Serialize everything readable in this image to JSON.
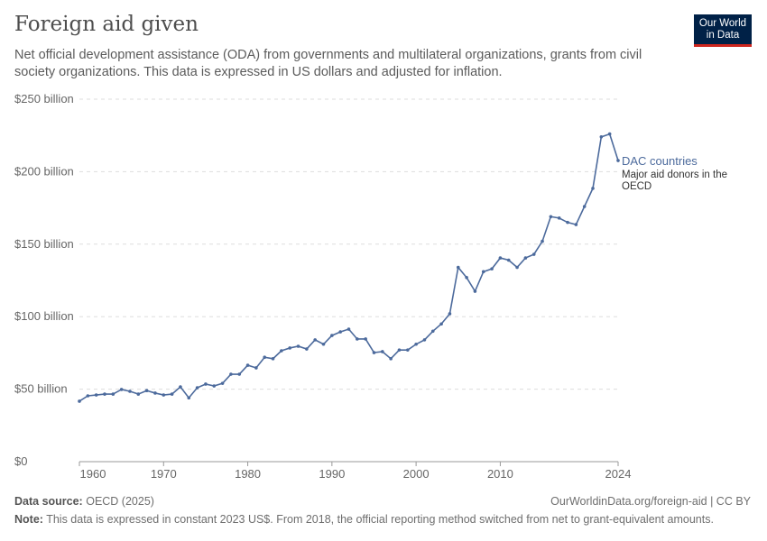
{
  "title": "Foreign aid given",
  "subtitle": "Net official development assistance (ODA) from governments and multilateral organizations, grants from civil society organizations. This data is expressed in US dollars and adjusted for inflation.",
  "logo": {
    "line1": "Our World",
    "line2": "in Data"
  },
  "footer": {
    "source_label": "Data source:",
    "source": "OECD (2025)",
    "url": "OurWorldinData.org/foreign-aid | CC BY",
    "note_label": "Note:",
    "note": "This data is expressed in constant 2023 US$. From 2018, the official reporting method switched from net to grant-equivalent amounts."
  },
  "colors": {
    "series": "#4c6a9c",
    "grid": "#dddddd",
    "text": "#5b5b5b"
  },
  "chart_data": {
    "type": "line",
    "xlim": [
      1960,
      2024
    ],
    "ylim": [
      0,
      250
    ],
    "grid": "horizontal dashed",
    "yticks": [
      {
        "v": 0,
        "label": "$0"
      },
      {
        "v": 50,
        "label": "$50 billion"
      },
      {
        "v": 100,
        "label": "$100 billion"
      },
      {
        "v": 150,
        "label": "$150 billion"
      },
      {
        "v": 200,
        "label": "$200 billion"
      },
      {
        "v": 250,
        "label": "$250 billion"
      }
    ],
    "xticks": [
      {
        "v": 1960,
        "label": "1960"
      },
      {
        "v": 1970,
        "label": "1970"
      },
      {
        "v": 1980,
        "label": "1980"
      },
      {
        "v": 1990,
        "label": "1990"
      },
      {
        "v": 2000,
        "label": "2000"
      },
      {
        "v": 2010,
        "label": "2010"
      },
      {
        "v": 2024,
        "label": "2024"
      }
    ],
    "series": [
      {
        "name": "DAC countries",
        "description": "Major aid donors in the OECD",
        "x": [
          1960,
          1961,
          1962,
          1963,
          1964,
          1965,
          1966,
          1967,
          1968,
          1969,
          1970,
          1971,
          1972,
          1973,
          1974,
          1975,
          1976,
          1977,
          1978,
          1979,
          1980,
          1981,
          1982,
          1983,
          1984,
          1985,
          1986,
          1987,
          1988,
          1989,
          1990,
          1991,
          1992,
          1993,
          1994,
          1995,
          1996,
          1997,
          1998,
          1999,
          2000,
          2001,
          2002,
          2003,
          2004,
          2005,
          2006,
          2007,
          2008,
          2009,
          2010,
          2011,
          2012,
          2013,
          2014,
          2015,
          2016,
          2017,
          2018,
          2019,
          2020,
          2021,
          2022,
          2023,
          2024
        ],
        "values": [
          41.7,
          45.4,
          46,
          46.6,
          46.6,
          49.8,
          48.5,
          46.6,
          49,
          47.3,
          46,
          46.6,
          51.6,
          44,
          51,
          53.5,
          52.2,
          54,
          60.3,
          60.3,
          66.5,
          64.7,
          72,
          71,
          76.5,
          78.4,
          79.6,
          77.7,
          84,
          81,
          87,
          89.5,
          91.4,
          84.6,
          84.6,
          75.2,
          75.9,
          71,
          77,
          77,
          81,
          84,
          90,
          95,
          102,
          134,
          127,
          117.5,
          131,
          133,
          140.5,
          139,
          134,
          140.5,
          143,
          152,
          169,
          168,
          165,
          163.5,
          176,
          188.5,
          224,
          226,
          207.7
        ]
      }
    ]
  }
}
